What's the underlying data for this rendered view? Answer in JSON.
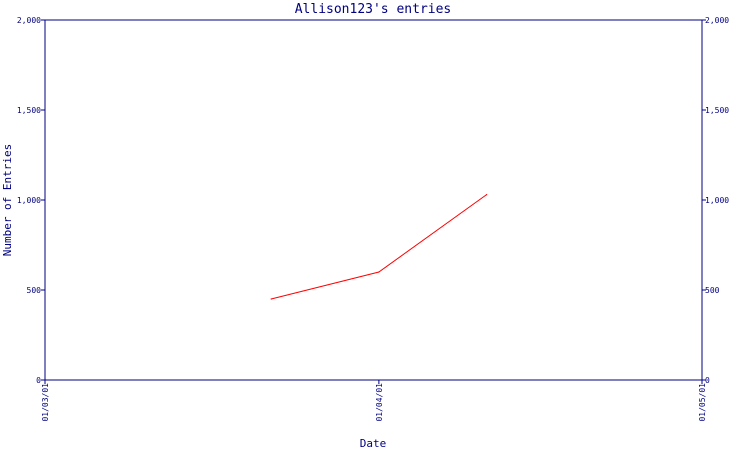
{
  "chart_data": {
    "type": "line",
    "title": "Allison123's entries",
    "xlabel": "Date",
    "ylabel": "Number of Entries",
    "ylim": [
      0,
      2000
    ],
    "y_ticks": [
      0,
      500,
      1000,
      1500,
      2000
    ],
    "y_tick_labels": [
      "0",
      "500",
      "1,000",
      "1,500",
      "2,000"
    ],
    "x_ticks": [
      "01/03/01",
      "01/04/01",
      "01/05/01"
    ],
    "xlim": [
      "2001-03-01",
      "2001-05-01"
    ],
    "series": [
      {
        "color": "#ff0000",
        "points": [
          {
            "x": "2001-03-22",
            "y": 450
          },
          {
            "x": "2001-04-01",
            "y": 600
          },
          {
            "x": "2001-04-11",
            "y": 1030
          }
        ]
      }
    ],
    "colors": {
      "axis": "#000080",
      "text": "#000080",
      "line": "#ff0000"
    },
    "grid": false,
    "secondary_y_axis": true
  }
}
